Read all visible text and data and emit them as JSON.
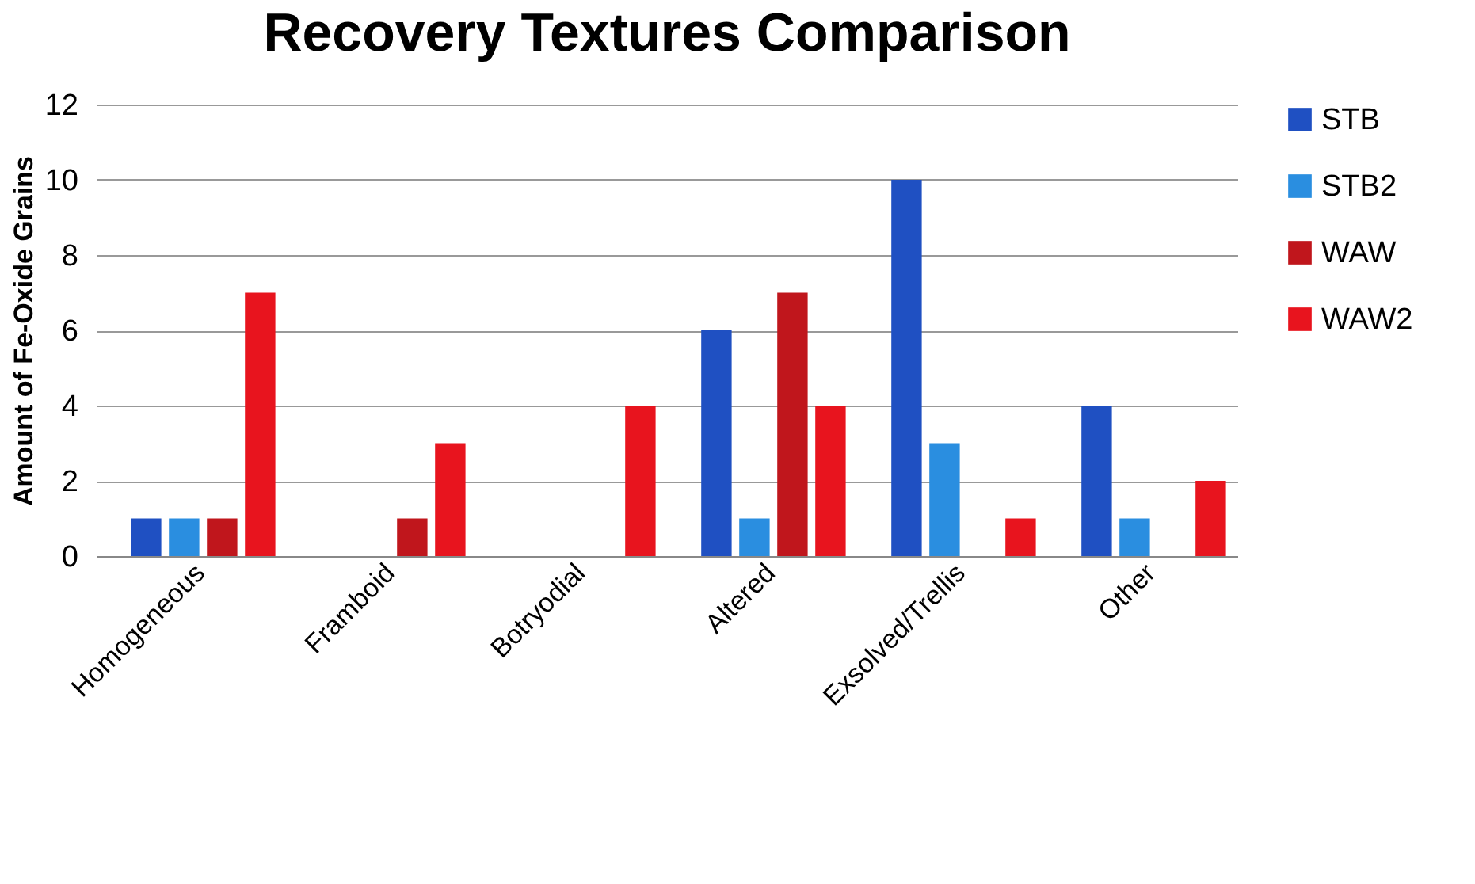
{
  "chart_data": {
    "type": "bar",
    "title": "Recovery Textures Comparison",
    "ylabel": "Amount of Fe-Oxide Grains",
    "categories": [
      "Homogeneous",
      "Framboid",
      "Botryodial",
      "Altered",
      "Exsolved/Trellis",
      "Other"
    ],
    "series": [
      {
        "name": "STB",
        "color": "#1f50c2",
        "values": [
          1,
          0,
          0,
          6,
          10,
          4
        ]
      },
      {
        "name": "STB2",
        "color": "#2a8ee0",
        "values": [
          1,
          0,
          0,
          1,
          3,
          1
        ]
      },
      {
        "name": "WAW",
        "color": "#c0161c",
        "values": [
          1,
          1,
          0,
          7,
          0,
          0
        ]
      },
      {
        "name": "WAW2",
        "color": "#e8141e",
        "values": [
          7,
          3,
          4,
          4,
          1,
          2
        ]
      }
    ],
    "ylim": [
      0,
      12
    ],
    "yticks": [
      0,
      2,
      4,
      6,
      8,
      10,
      12
    ],
    "grid": "y",
    "legend": "right"
  }
}
